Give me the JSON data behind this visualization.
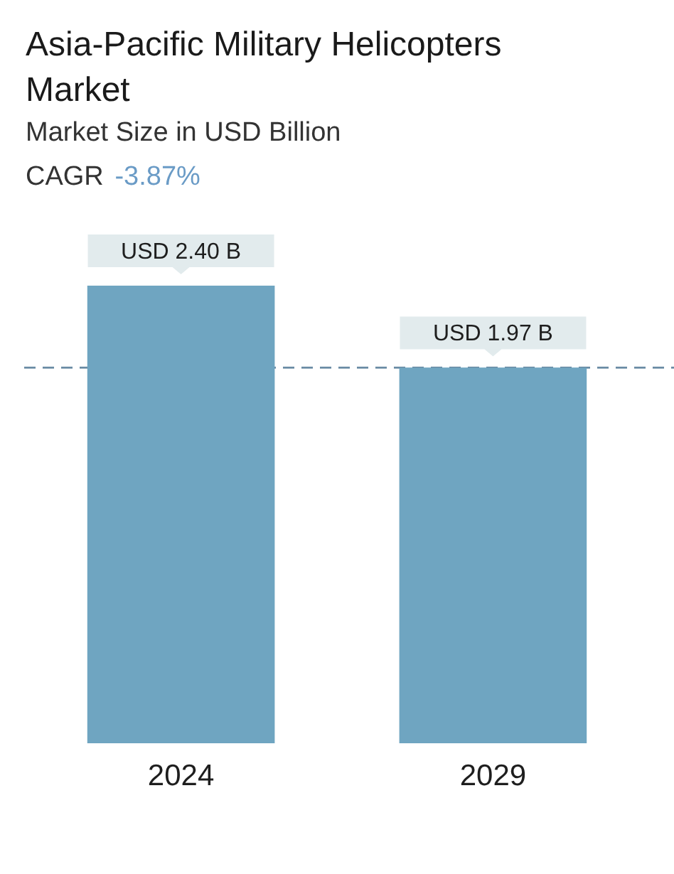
{
  "chart_data": {
    "type": "bar",
    "title": "Asia-Pacific Military Helicopters Market",
    "subtitle": "Market Size in USD Billion",
    "annotations": [
      "CAGR -3.87%"
    ],
    "categories": [
      "2024",
      "2029"
    ],
    "values": [
      2.4,
      1.97
    ],
    "value_labels": [
      "USD 2.40 B",
      "USD 1.97 B"
    ],
    "color": "#6fa5c1",
    "ref_lines": [
      {
        "axis": "y",
        "value": 1.97,
        "color": "#6b8ca5",
        "line_style": "dashed"
      }
    ]
  }
}
